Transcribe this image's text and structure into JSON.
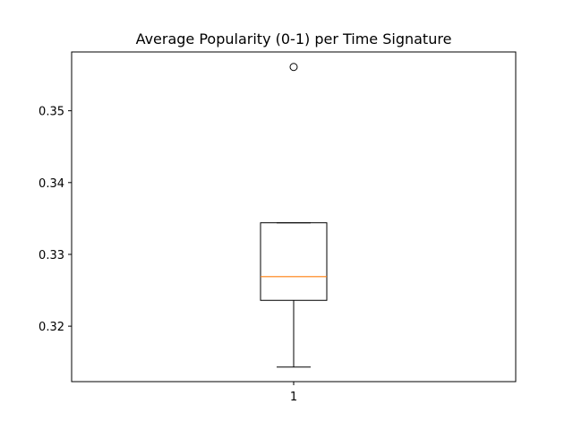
{
  "chart_data": {
    "type": "boxplot",
    "title": "Average Popularity (0-1) per Time Signature",
    "xlabel": "",
    "ylabel": "",
    "categories": [
      "1"
    ],
    "boxes": [
      {
        "name": "1",
        "whisker_low": 0.3143,
        "q1": 0.3236,
        "median": 0.3269,
        "q3": 0.3344,
        "whisker_high": 0.3344,
        "fliers": [
          0.3561
        ]
      }
    ],
    "ylim": [
      0.31228,
      0.35819
    ],
    "yticks": [
      0.32,
      0.33,
      0.34,
      0.35
    ],
    "ytick_labels": [
      "0.32",
      "0.33",
      "0.34",
      "0.35"
    ],
    "grid": false,
    "colors": {
      "box": "#000000",
      "median": "#ff7f0e",
      "flier": "#000000"
    }
  }
}
